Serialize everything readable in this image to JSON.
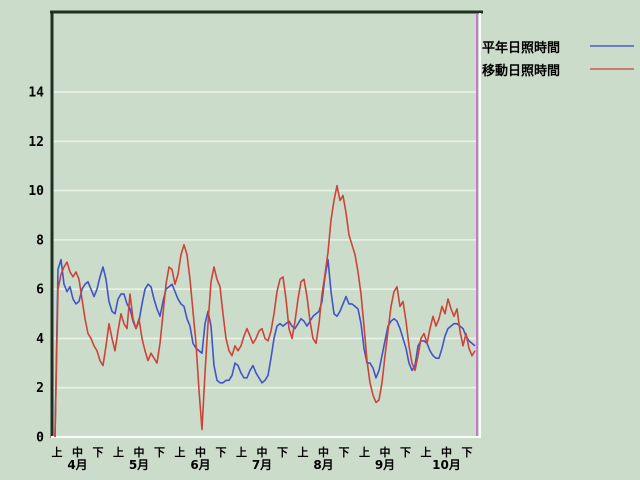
{
  "legend": {
    "items": [
      {
        "label": "平年日照時間",
        "color": "#6f7dc4"
      },
      {
        "label": "移動日照時間",
        "color": "#c67a72"
      }
    ]
  },
  "colors": {
    "background": "#ccdccb",
    "gridline": "#e9f2e7",
    "axis_dark": "#1e3020",
    "frame_light": "#fbfffb",
    "right_marker": "#cc77cc",
    "series_blue": "#4253c8",
    "series_red": "#cc4438",
    "text": "#000000"
  },
  "chart_data": {
    "type": "line",
    "title": "",
    "xlabel": "",
    "ylabel": "",
    "y_ticks": [
      0,
      2,
      4,
      6,
      8,
      10,
      12,
      14
    ],
    "ylim": [
      0,
      16
    ],
    "grid": true,
    "legend_position": "top-right",
    "months": [
      "4月",
      "5月",
      "6月",
      "7月",
      "8月",
      "9月",
      "10月"
    ],
    "period_labels": [
      "上",
      "中",
      "下"
    ],
    "x_description": "daily values April–October; ticks mark 上/中/下 (early/mid/late) of each month",
    "series": [
      {
        "name": "平年日照時間",
        "color": "#4253c8",
        "values": [
          0.0,
          6.8,
          7.2,
          6.2,
          5.9,
          6.1,
          5.6,
          5.4,
          5.5,
          6.0,
          6.2,
          6.3,
          6.0,
          5.7,
          6.0,
          6.5,
          6.9,
          6.4,
          5.5,
          5.1,
          5.0,
          5.6,
          5.8,
          5.8,
          5.4,
          5.2,
          4.7,
          4.4,
          4.7,
          5.4,
          6.0,
          6.2,
          6.1,
          5.6,
          5.2,
          4.9,
          5.5,
          6.0,
          6.1,
          6.2,
          5.9,
          5.6,
          5.4,
          5.3,
          4.8,
          4.5,
          3.8,
          3.6,
          3.5,
          3.4,
          4.6,
          5.1,
          4.5,
          2.9,
          2.3,
          2.2,
          2.2,
          2.3,
          2.3,
          2.5,
          3.0,
          2.9,
          2.6,
          2.4,
          2.4,
          2.7,
          2.9,
          2.6,
          2.4,
          2.2,
          2.3,
          2.5,
          3.2,
          4.0,
          4.5,
          4.6,
          4.5,
          4.6,
          4.7,
          4.5,
          4.4,
          4.6,
          4.8,
          4.7,
          4.5,
          4.7,
          4.9,
          5.0,
          5.1,
          5.5,
          6.5,
          7.2,
          5.9,
          5.0,
          4.9,
          5.1,
          5.4,
          5.7,
          5.4,
          5.4,
          5.3,
          5.2,
          4.6,
          3.6,
          3.0,
          3.0,
          2.8,
          2.4,
          2.7,
          3.3,
          3.9,
          4.5,
          4.7,
          4.8,
          4.7,
          4.4,
          4.0,
          3.6,
          3.0,
          2.7,
          2.9,
          3.7,
          3.9,
          3.9,
          3.8,
          3.5,
          3.3,
          3.2,
          3.2,
          3.6,
          4.1,
          4.4,
          4.5,
          4.6,
          4.6,
          4.5,
          4.4,
          4.1,
          3.9,
          3.8,
          3.7
        ]
      },
      {
        "name": "移動日照時間",
        "color": "#cc4438",
        "values": [
          0.0,
          6.0,
          6.6,
          6.9,
          7.1,
          6.7,
          6.5,
          6.7,
          6.4,
          5.6,
          4.8,
          4.2,
          4.0,
          3.7,
          3.5,
          3.1,
          2.9,
          3.7,
          4.6,
          4.0,
          3.5,
          4.3,
          5.0,
          4.6,
          4.4,
          5.8,
          4.8,
          4.4,
          4.8,
          4.0,
          3.5,
          3.1,
          3.4,
          3.2,
          3.0,
          3.8,
          5.0,
          6.2,
          6.9,
          6.8,
          6.2,
          6.6,
          7.4,
          7.8,
          7.4,
          6.4,
          5.1,
          3.8,
          1.9,
          0.3,
          2.6,
          4.6,
          6.3,
          6.9,
          6.4,
          6.1,
          5.0,
          4.0,
          3.5,
          3.3,
          3.7,
          3.5,
          3.7,
          4.1,
          4.4,
          4.1,
          3.8,
          4.0,
          4.3,
          4.4,
          4.0,
          3.9,
          4.3,
          5.0,
          5.9,
          6.4,
          6.5,
          5.6,
          4.4,
          4.0,
          4.7,
          5.6,
          6.3,
          6.4,
          5.7,
          4.7,
          4.0,
          3.8,
          4.6,
          5.8,
          6.6,
          7.5,
          8.8,
          9.6,
          10.2,
          9.6,
          9.8,
          9.1,
          8.2,
          7.8,
          7.4,
          6.7,
          5.8,
          4.5,
          3.1,
          2.2,
          1.7,
          1.4,
          1.5,
          2.2,
          3.3,
          4.3,
          5.3,
          5.9,
          6.1,
          5.3,
          5.5,
          4.7,
          3.7,
          3.0,
          2.7,
          3.3,
          4.0,
          4.2,
          3.8,
          4.4,
          4.9,
          4.5,
          4.8,
          5.3,
          5.0,
          5.6,
          5.2,
          4.9,
          5.2,
          4.3,
          3.7,
          4.2,
          3.6,
          3.3,
          3.5
        ]
      }
    ]
  }
}
